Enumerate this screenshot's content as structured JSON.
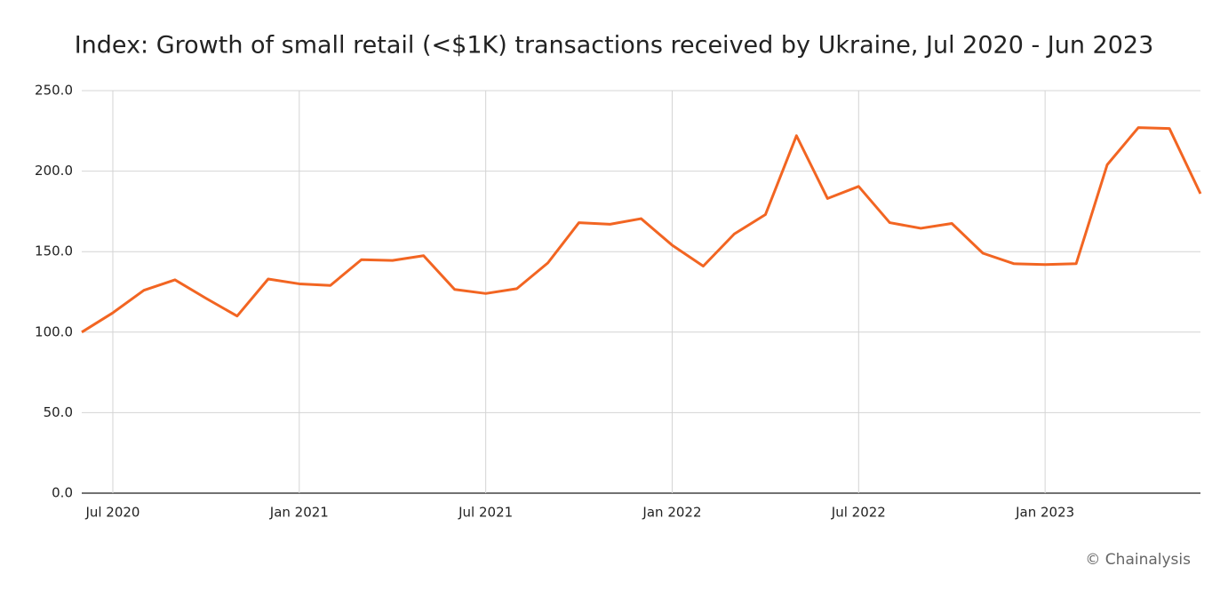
{
  "chart_data": {
    "type": "line",
    "title": "Index: Growth of small retail (<$1K) transactions received by Ukraine, Jul 2020 - Jun 2023",
    "source": "© Chainalysis",
    "categories": [
      null,
      "Jul 2020",
      null,
      null,
      null,
      null,
      null,
      "Jan 2021",
      null,
      null,
      null,
      null,
      null,
      "Jul 2021",
      null,
      null,
      null,
      null,
      null,
      "Jan 2022",
      null,
      null,
      null,
      null,
      null,
      "Jul 2022",
      null,
      null,
      null,
      null,
      null,
      "Jan 2023",
      null,
      null,
      null,
      null,
      null
    ],
    "series": [
      {
        "name": "Index",
        "color": "#f26522",
        "values": [
          100,
          112,
          126,
          132.5,
          121,
          110,
          133,
          130,
          129,
          145,
          144.5,
          147.5,
          126.5,
          124,
          127,
          143,
          168,
          167,
          170.5,
          154,
          141,
          161,
          173,
          222,
          183,
          190.5,
          168,
          164.5,
          167.5,
          149,
          142.5,
          142,
          142.5,
          204,
          227,
          226.5,
          186
        ]
      }
    ],
    "ylim": [
      0,
      250
    ],
    "yticks": [
      {
        "value": 0,
        "label": "0.0"
      },
      {
        "value": 50,
        "label": "50.0"
      },
      {
        "value": 100,
        "label": "100.0"
      },
      {
        "value": 150,
        "label": "150.0"
      },
      {
        "value": 200,
        "label": "200.0"
      },
      {
        "value": 250,
        "label": "250.0"
      }
    ],
    "grid": true
  }
}
